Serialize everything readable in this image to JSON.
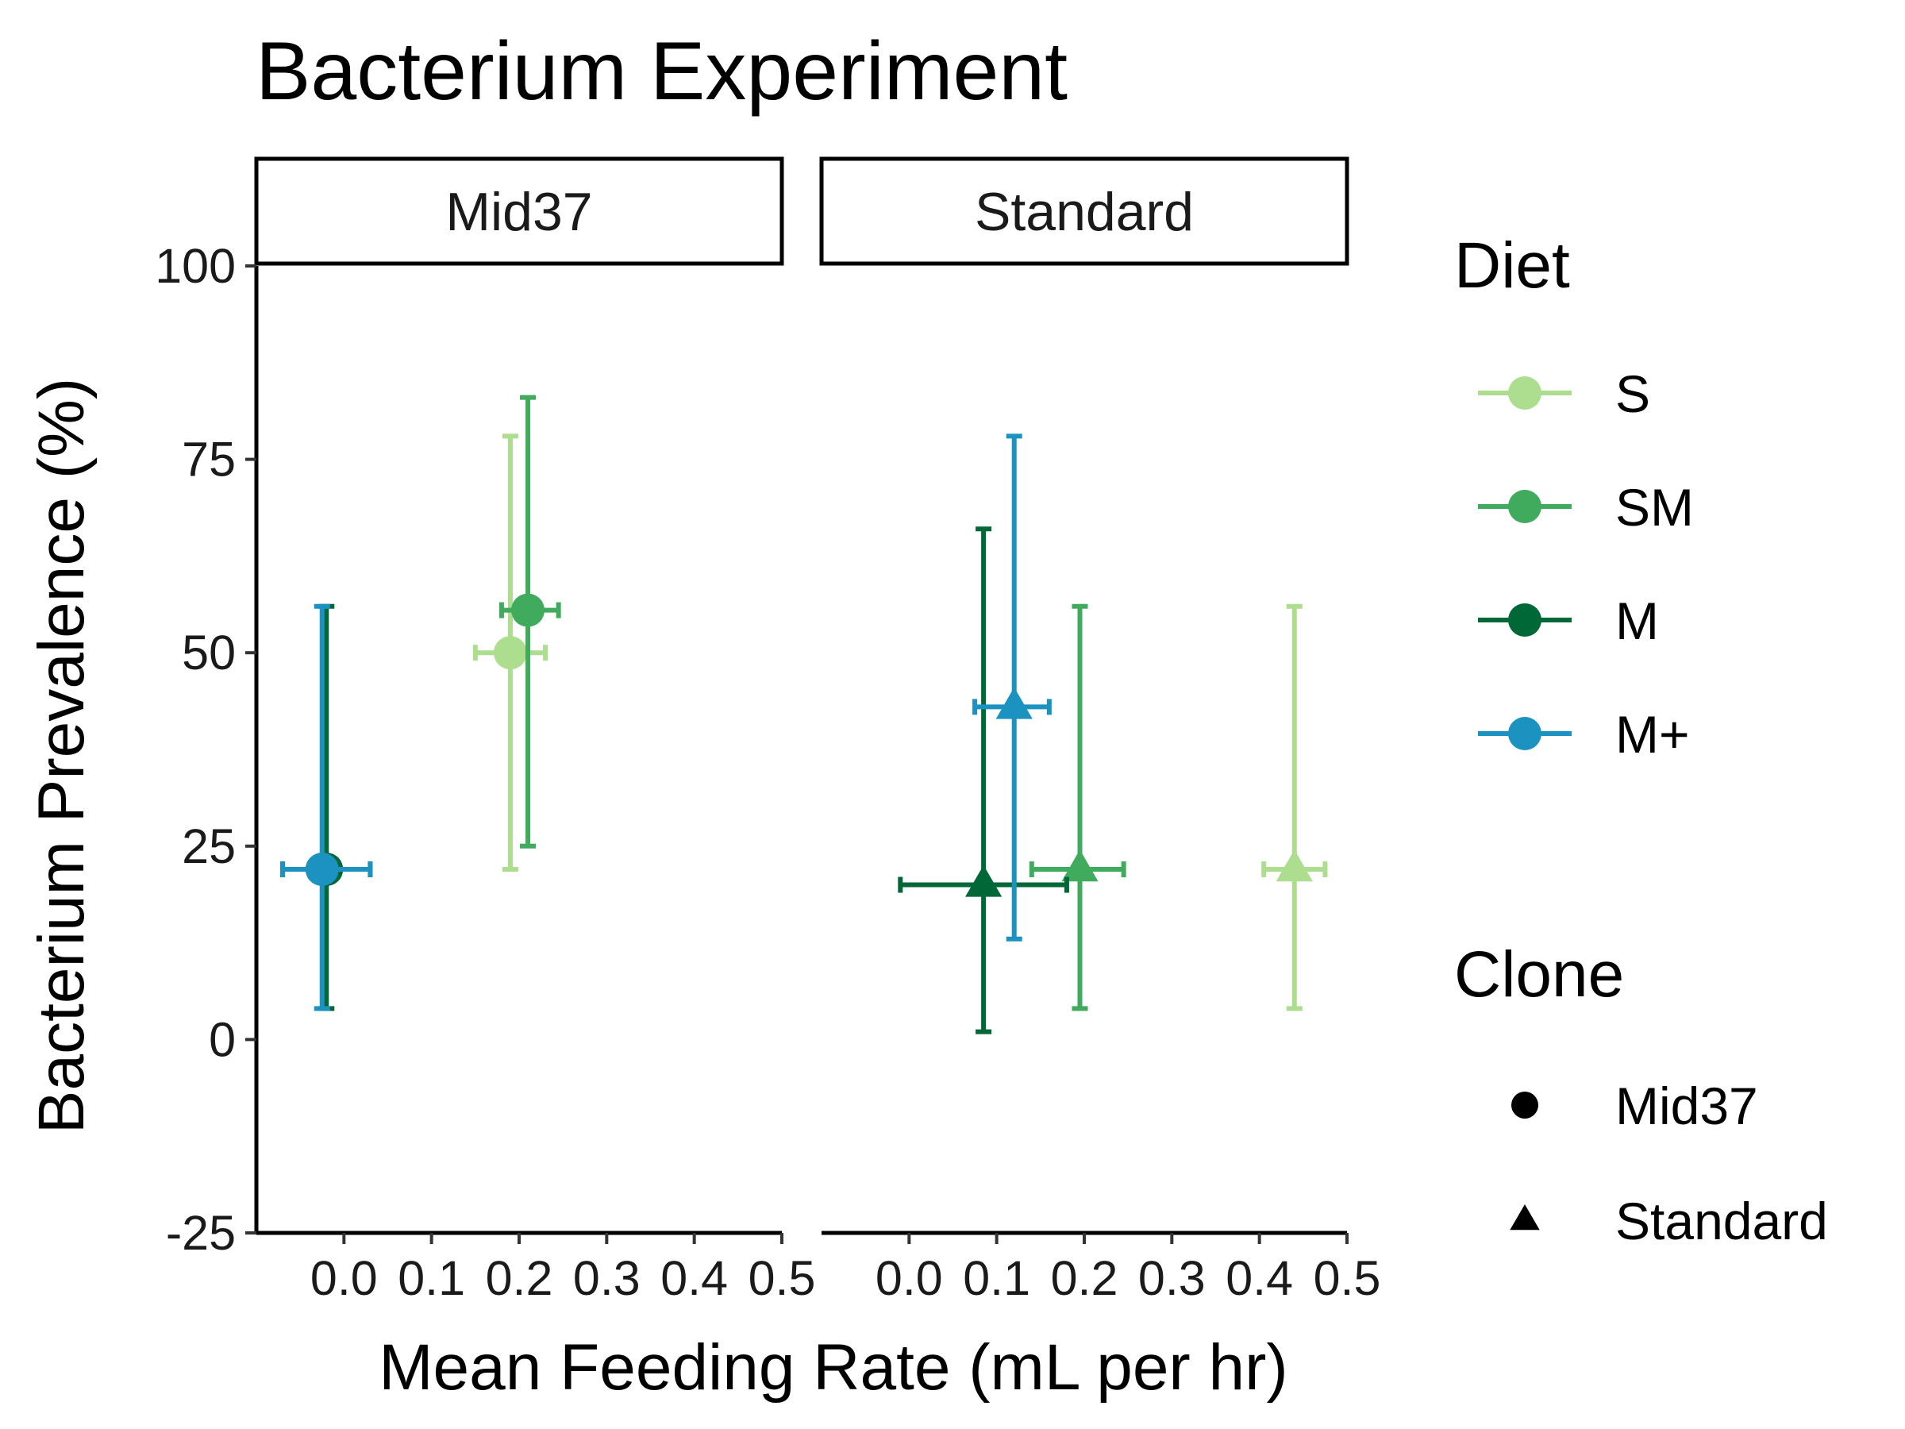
{
  "chart_data": {
    "type": "scatter",
    "title": "Bacterium Experiment",
    "xlabel": "Mean Feeding Rate (mL per hr)",
    "ylabel": "Bacterium Prevalence (%)",
    "xlim": [
      -0.1,
      0.5
    ],
    "ylim": [
      -25,
      100
    ],
    "x_ticks": [
      0.0,
      0.1,
      0.2,
      0.3,
      0.4,
      0.5
    ],
    "x_tick_labels": [
      "0.0",
      "0.1",
      "0.2",
      "0.3",
      "0.4",
      "0.5"
    ],
    "y_ticks": [
      -25,
      0,
      25,
      50,
      75,
      100
    ],
    "y_tick_labels": [
      "-25",
      "0",
      "25",
      "50",
      "75",
      "100"
    ],
    "grid": false,
    "facets": [
      "Mid37",
      "Standard"
    ],
    "legend": {
      "placement": "right",
      "diet_title": "Diet",
      "diet_items": [
        {
          "label": "S",
          "color": "#addd8e"
        },
        {
          "label": "SM",
          "color": "#41ab5d"
        },
        {
          "label": "M",
          "color": "#006837"
        },
        {
          "label": "M+",
          "color": "#1c92c0"
        }
      ],
      "clone_title": "Clone",
      "clone_items": [
        {
          "label": "Mid37",
          "shape": "circle"
        },
        {
          "label": "Standard",
          "shape": "triangle"
        }
      ]
    },
    "points": [
      {
        "facet": "Mid37",
        "diet": "S",
        "clone": "Mid37",
        "x": 0.19,
        "y": 50,
        "xmin": 0.15,
        "xmax": 0.23,
        "ymin": 22,
        "ymax": 78
      },
      {
        "facet": "Mid37",
        "diet": "SM",
        "clone": "Mid37",
        "x": 0.21,
        "y": 55.5,
        "xmin": 0.18,
        "xmax": 0.245,
        "ymin": 25,
        "ymax": 83
      },
      {
        "facet": "Mid37",
        "diet": "M",
        "clone": "Mid37",
        "x": -0.02,
        "y": 22,
        "xmin": -0.07,
        "xmax": 0.03,
        "ymin": 4,
        "ymax": 56
      },
      {
        "facet": "Mid37",
        "diet": "M+",
        "clone": "Mid37",
        "x": -0.025,
        "y": 22,
        "xmin": -0.07,
        "xmax": 0.03,
        "ymin": 4,
        "ymax": 56
      },
      {
        "facet": "Standard",
        "diet": "S",
        "clone": "Standard",
        "x": 0.44,
        "y": 22,
        "xmin": 0.405,
        "xmax": 0.475,
        "ymin": 4,
        "ymax": 56
      },
      {
        "facet": "Standard",
        "diet": "SM",
        "clone": "Standard",
        "x": 0.195,
        "y": 22,
        "xmin": 0.14,
        "xmax": 0.245,
        "ymin": 4,
        "ymax": 56
      },
      {
        "facet": "Standard",
        "diet": "M",
        "clone": "Standard",
        "x": 0.085,
        "y": 20,
        "xmin": -0.01,
        "xmax": 0.18,
        "ymin": 1,
        "ymax": 66
      },
      {
        "facet": "Standard",
        "diet": "M+",
        "clone": "Standard",
        "x": 0.12,
        "y": 43,
        "xmin": 0.075,
        "xmax": 0.16,
        "ymin": 13,
        "ymax": 78
      }
    ]
  }
}
